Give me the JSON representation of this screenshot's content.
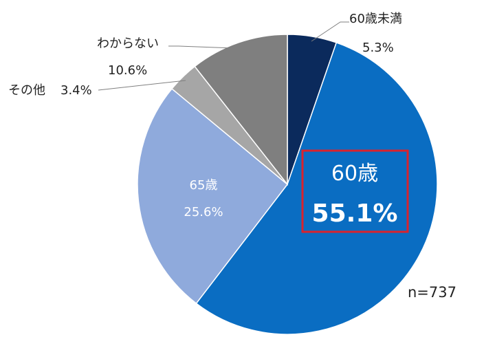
{
  "chart_data": {
    "type": "pie",
    "title": "",
    "slices": [
      {
        "label": "60歳未満",
        "value": 5.3,
        "value_text": "5.3%",
        "color": "#0b2a5c"
      },
      {
        "label": "60歳",
        "value": 55.1,
        "value_text": "55.1%",
        "color": "#0a6dc2"
      },
      {
        "label": "65歳",
        "value": 25.6,
        "value_text": "25.6%",
        "color": "#8faadc"
      },
      {
        "label": "その他",
        "value": 3.4,
        "value_text": "3.4%",
        "color": "#a6a6a6"
      },
      {
        "label": "わからない",
        "value": 10.6,
        "value_text": "10.6%",
        "color": "#7f7f7f"
      }
    ],
    "start_angle_deg": 0,
    "direction": "clockwise",
    "highlight": "60歳",
    "highlight_color": "#d9232d",
    "sample_size_text": "n=737"
  }
}
